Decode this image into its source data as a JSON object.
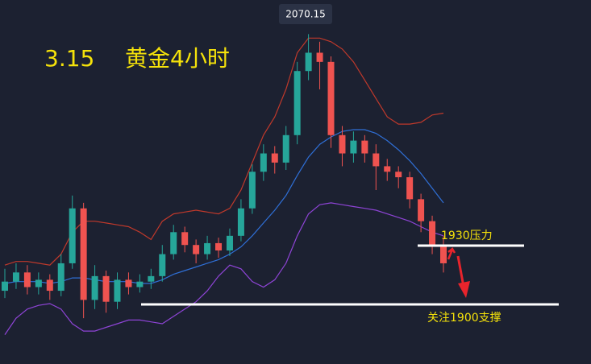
{
  "chart_data": {
    "type": "candlestick",
    "title": "3.15",
    "subtitle": "黄金4小时",
    "annotations": [
      "2070.15",
      "1930压力",
      "关注1900支撑"
    ],
    "ylim": [
      1890,
      2080
    ],
    "up_color": "#26a69a",
    "down_color": "#ef5350",
    "open": [
      1930,
      1935,
      1940,
      1932,
      1936,
      1930,
      1945,
      1975,
      1925,
      1938,
      1924,
      1936,
      1932,
      1935,
      1938,
      1950,
      1962,
      1955,
      1950,
      1956,
      1952,
      1960,
      1975,
      1995,
      2005,
      2000,
      2015,
      2050,
      2060,
      2055,
      2015,
      2005,
      2012,
      2005,
      1998,
      1995,
      1992,
      1980,
      1968,
      1955
    ],
    "high": [
      1942,
      1945,
      1944,
      1940,
      1939,
      1950,
      1982,
      1978,
      1944,
      1941,
      1940,
      1940,
      1939,
      1942,
      1955,
      1966,
      1965,
      1958,
      1960,
      1959,
      1964,
      1980,
      1999,
      2010,
      2009,
      2020,
      2055,
      2070.15,
      2066,
      2058,
      2020,
      2017,
      2015,
      2010,
      2002,
      1998,
      1995,
      1983,
      1971,
      1960
    ],
    "low": [
      1926,
      1931,
      1928,
      1928,
      1925,
      1927,
      1942,
      1915,
      1920,
      1918,
      1920,
      1928,
      1929,
      1931,
      1935,
      1947,
      1951,
      1945,
      1947,
      1948,
      1949,
      1957,
      1972,
      1990,
      1994,
      1996,
      2010,
      2045,
      2040,
      2008,
      1998,
      2000,
      2000,
      1985,
      1990,
      1986,
      1975,
      1962,
      1950,
      1940
    ],
    "close": [
      1935,
      1940,
      1932,
      1936,
      1930,
      1945,
      1975,
      1925,
      1938,
      1924,
      1936,
      1932,
      1935,
      1938,
      1950,
      1962,
      1955,
      1950,
      1956,
      1952,
      1960,
      1975,
      1995,
      2005,
      2000,
      2015,
      2050,
      2060,
      2055,
      2015,
      2005,
      2012,
      2005,
      1998,
      1995,
      1992,
      1980,
      1968,
      1955,
      1945
    ],
    "bands": [
      {
        "color": "#c0392b",
        "values": [
          1944,
          1946,
          1946,
          1945,
          1944,
          1950,
          1962,
          1968,
          1968,
          1967,
          1966,
          1965,
          1962,
          1958,
          1968,
          1972,
          1973,
          1974,
          1973,
          1972,
          1975,
          1985,
          2000,
          2015,
          2025,
          2040,
          2060,
          2068,
          2068,
          2066,
          2062,
          2055,
          2045,
          2035,
          2025,
          2021,
          2021,
          2022,
          2026,
          2027
        ]
      },
      {
        "color": "#2f6fd6",
        "values": [
          1934,
          1935,
          1935,
          1935,
          1934,
          1935,
          1937,
          1937,
          1936,
          1935,
          1935,
          1935,
          1934,
          1934,
          1936,
          1939,
          1941,
          1943,
          1945,
          1947,
          1950,
          1954,
          1960,
          1967,
          1974,
          1982,
          1993,
          2003,
          2010,
          2014,
          2017,
          2018,
          2018,
          2016,
          2012,
          2007,
          2001,
          1994,
          1986,
          1978
        ]
      },
      {
        "color": "#8e44d6",
        "values": [
          1906,
          1915,
          1920,
          1922,
          1923,
          1920,
          1912,
          1908,
          1908,
          1910,
          1912,
          1914,
          1914,
          1913,
          1912,
          1916,
          1920,
          1924,
          1930,
          1938,
          1944,
          1942,
          1935,
          1932,
          1936,
          1945,
          1960,
          1972,
          1977,
          1978,
          1977,
          1976,
          1975,
          1974,
          1972,
          1970,
          1968,
          1965,
          1962,
          1960
        ]
      }
    ]
  }
}
